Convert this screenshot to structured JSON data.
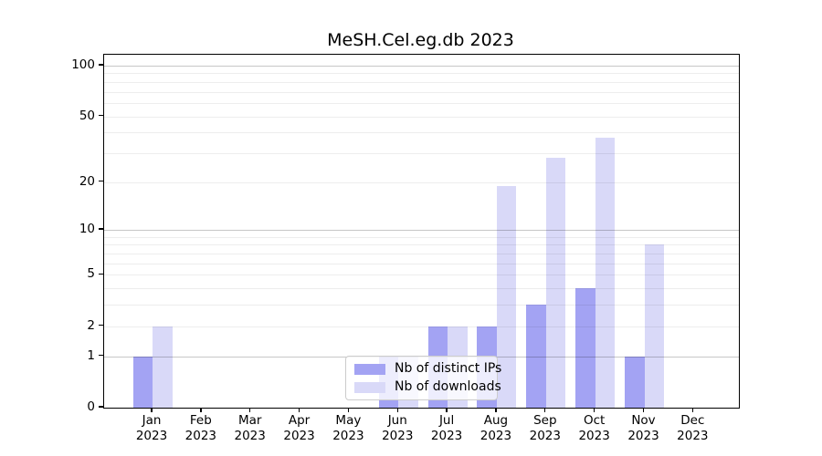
{
  "figure": {
    "kind": "bar-chart-figure"
  },
  "chart_data": {
    "type": "bar",
    "title": "MeSH.Cel.eg.db 2023",
    "categories": [
      "Jan",
      "Feb",
      "Mar",
      "Apr",
      "May",
      "Jun",
      "Jul",
      "Aug",
      "Sep",
      "Oct",
      "Nov",
      "Dec"
    ],
    "x_tick_year": "2023",
    "series": [
      {
        "name": "Nb of distinct IPs",
        "color": "#a3a3f3",
        "values": [
          1,
          0,
          0,
          0,
          0,
          1,
          2,
          2,
          3,
          4,
          1,
          0
        ]
      },
      {
        "name": "Nb of downloads",
        "color": "#d9d9f8",
        "values": [
          2,
          0,
          0,
          0,
          0,
          1,
          2,
          19,
          28,
          37,
          8,
          0
        ]
      }
    ],
    "y_scale": "log1p",
    "ylim": [
      0,
      117
    ],
    "y_ticks": [
      0,
      1,
      2,
      5,
      10,
      20,
      50,
      100
    ],
    "y_grid_major": [
      1,
      10,
      100
    ],
    "y_grid_minor": [
      2,
      3,
      4,
      5,
      6,
      7,
      8,
      9,
      20,
      30,
      40,
      50,
      60,
      70,
      80,
      90
    ],
    "grid": "on",
    "legend_position": "lower center",
    "xlabel": "",
    "ylabel": ""
  }
}
